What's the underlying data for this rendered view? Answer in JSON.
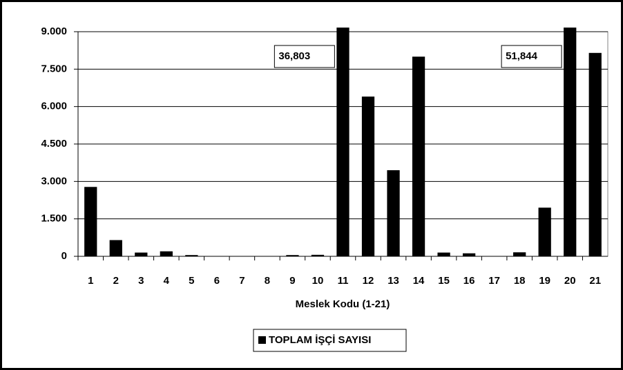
{
  "chart_data": {
    "type": "bar",
    "categories": [
      "1",
      "2",
      "3",
      "4",
      "5",
      "6",
      "7",
      "8",
      "9",
      "10",
      "11",
      "12",
      "13",
      "14",
      "15",
      "16",
      "17",
      "18",
      "19",
      "20",
      "21"
    ],
    "series": [
      {
        "name": "TOPLAM İŞÇİ SAYISI",
        "color": "#000000",
        "values": [
          2780,
          650,
          150,
          200,
          50,
          10,
          10,
          10,
          50,
          60,
          36803,
          6400,
          3450,
          8000,
          150,
          120,
          10,
          160,
          1950,
          51844,
          8150
        ],
        "value_labels": [
          null,
          null,
          null,
          null,
          null,
          null,
          null,
          null,
          null,
          null,
          "36,803",
          null,
          null,
          null,
          null,
          null,
          null,
          null,
          null,
          "51,844",
          null
        ]
      }
    ],
    "x_label": "Meslek Kodu (1-21)",
    "ylim": [
      0,
      9000
    ],
    "yticks": [
      {
        "value": 0,
        "label": "0"
      },
      {
        "value": 1500,
        "label": "1.500"
      },
      {
        "value": 3000,
        "label": "3.000"
      },
      {
        "value": 4500,
        "label": "4.500"
      },
      {
        "value": 6000,
        "label": "6.000"
      },
      {
        "value": 7500,
        "label": "7.500"
      },
      {
        "value": 9000,
        "label": "9.000"
      }
    ],
    "grid": true,
    "legend": "bottom"
  }
}
